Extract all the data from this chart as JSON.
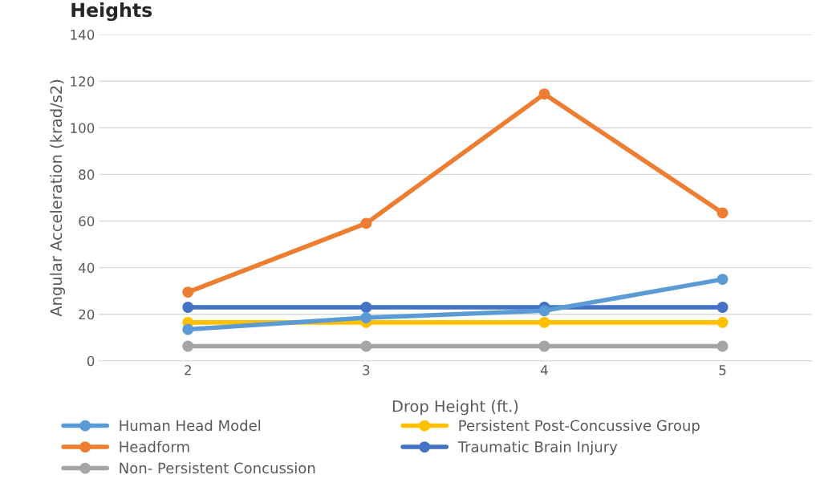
{
  "chart_data": {
    "type": "line",
    "title": "Heights",
    "xlabel": "Drop Height (ft.)",
    "ylabel": "Angular Acceleration (krad/s2)",
    "categories": [
      "2",
      "3",
      "4",
      "5"
    ],
    "series": [
      {
        "name": "Human Head Model",
        "color": "#5b9bd5",
        "values": [
          13.5,
          18.5,
          21.5,
          35
        ]
      },
      {
        "name": "Headform",
        "color": "#ed7d31",
        "values": [
          29.5,
          59,
          114.5,
          63.5
        ]
      },
      {
        "name": "Non- Persistent Concussion",
        "color": "#a5a5a5",
        "values": [
          6.3,
          6.3,
          6.3,
          6.3
        ]
      },
      {
        "name": "Persistent Post-Concussive Group",
        "color": "#ffc000",
        "values": [
          16.5,
          16.5,
          16.5,
          16.5
        ]
      },
      {
        "name": "Traumatic Brain Injury",
        "color": "#4472c4",
        "values": [
          23,
          23,
          23,
          23
        ]
      }
    ],
    "ylim": [
      0,
      140
    ],
    "yticks": [
      0,
      20,
      40,
      60,
      80,
      100,
      120,
      140
    ],
    "grid": "y",
    "legend": "bottom",
    "marker": "circle",
    "line_style": "solid"
  }
}
